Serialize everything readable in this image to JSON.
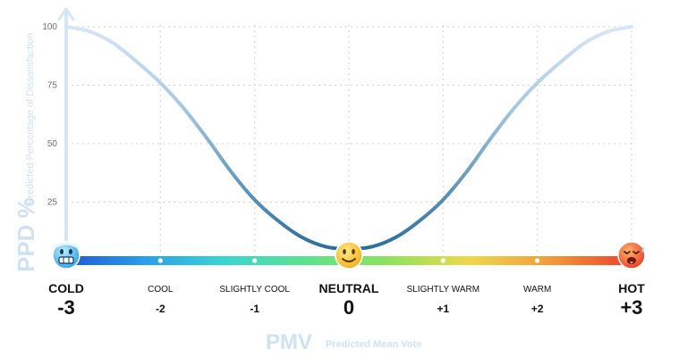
{
  "chart_data": {
    "type": "line",
    "title": "",
    "ylabel": "PPD %",
    "ylabel_sub": "Predicted Percentage of Dissatisfaction",
    "xlabel": "PMV",
    "xlabel_sub": "Predicted Mean Vote",
    "ylim": [
      0,
      100
    ],
    "xlim": [
      -3,
      3
    ],
    "yticks": [
      25,
      50,
      75,
      100
    ],
    "grid": true,
    "x": [
      -3,
      -2.75,
      -2.5,
      -2.25,
      -2,
      -1.75,
      -1.5,
      -1.25,
      -1,
      -0.75,
      -0.5,
      -0.25,
      0,
      0.25,
      0.5,
      0.75,
      1,
      1.25,
      1.5,
      1.75,
      2,
      2.25,
      2.5,
      2.75,
      3
    ],
    "series": [
      {
        "values": [
          100,
          98,
          93,
          85,
          76,
          65,
          52,
          38,
          26,
          17,
          10,
          6,
          5,
          6,
          10,
          17,
          26,
          38,
          52,
          65,
          76,
          85,
          93,
          98,
          100
        ]
      }
    ],
    "scale": [
      {
        "pmv": -3,
        "label": "COLD",
        "value": "-3",
        "emphasis": true,
        "icon": "cold-face-icon"
      },
      {
        "pmv": -2,
        "label": "COOL",
        "value": "-2",
        "emphasis": false
      },
      {
        "pmv": -1,
        "label": "SLIGHTLY COOL",
        "value": "-1",
        "emphasis": false
      },
      {
        "pmv": 0,
        "label": "NEUTRAL",
        "value": "0",
        "emphasis": true,
        "icon": "smiling-face-icon"
      },
      {
        "pmv": 1,
        "label": "SLIGHTLY WARM",
        "value": "+1",
        "emphasis": false
      },
      {
        "pmv": 2,
        "label": "WARM",
        "value": "+2",
        "emphasis": false
      },
      {
        "pmv": 3,
        "label": "HOT",
        "value": "+3",
        "emphasis": true,
        "icon": "hot-face-icon"
      }
    ],
    "colors": {
      "curve_light": "#d6e6f6",
      "curve_dark": "#2c6f9c",
      "bar_gradient": [
        "#1f57d6",
        "#2aa0ec",
        "#39d7d0",
        "#5fe28a",
        "#8ee25e",
        "#f0d84a",
        "#f29a3a",
        "#ee3f2c"
      ],
      "axis": "#d6e6f6",
      "grid": "#d0d0d0",
      "title": "#cfe2f3"
    }
  }
}
